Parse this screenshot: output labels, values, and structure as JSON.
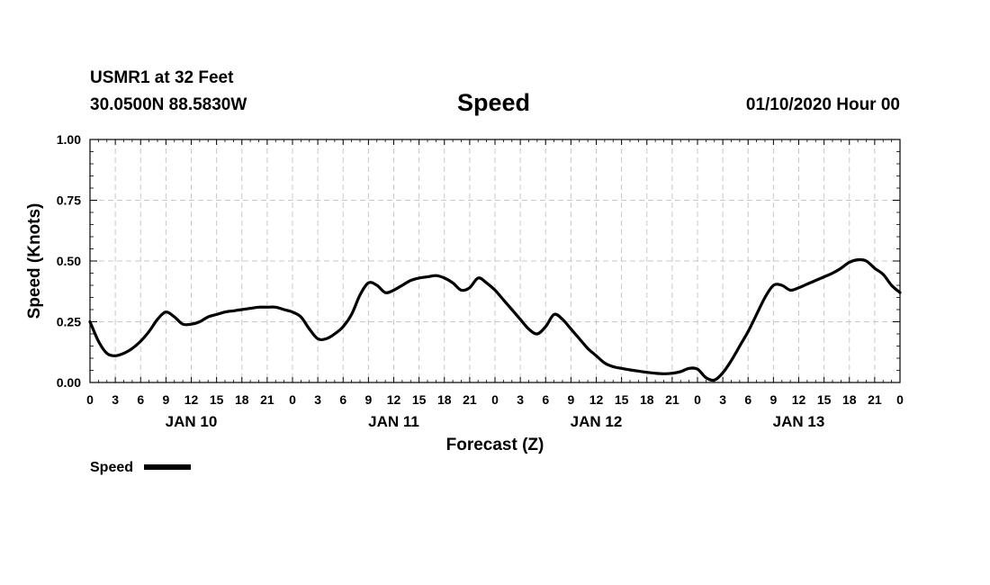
{
  "header": {
    "station": "USMR1 at 32 Feet",
    "location": "30.0500N 88.5830W",
    "title": "Speed",
    "datetime": "01/10/2020 Hour 00"
  },
  "chart_data": {
    "type": "line",
    "title": "Speed",
    "xlabel": "Forecast (Z)",
    "ylabel": "Speed (Knots)",
    "xlim": [
      0,
      96
    ],
    "ylim": [
      0,
      1
    ],
    "yticks": [
      "0.00",
      "0.25",
      "0.50",
      "0.75",
      "1.00"
    ],
    "xtick_labels": [
      "0",
      "3",
      "6",
      "9",
      "12",
      "15",
      "18",
      "21",
      "0",
      "3",
      "6",
      "9",
      "12",
      "15",
      "18",
      "21",
      "0",
      "3",
      "6",
      "9",
      "12",
      "15",
      "18",
      "21",
      "0",
      "3",
      "6",
      "9",
      "12",
      "15",
      "18",
      "21",
      "0"
    ],
    "day_labels": [
      "JAN 10",
      "JAN 11",
      "JAN 12",
      "JAN 13"
    ],
    "grid": true,
    "legend": "bottom-left",
    "series": [
      {
        "name": "Speed",
        "color": "#000000",
        "x": [
          0,
          1,
          2,
          3,
          4,
          5,
          6,
          7,
          8,
          9,
          10,
          11,
          12,
          13,
          14,
          15,
          16,
          17,
          18,
          19,
          20,
          21,
          22,
          23,
          24,
          25,
          26,
          27,
          28,
          29,
          30,
          31,
          32,
          33,
          34,
          35,
          36,
          37,
          38,
          39,
          40,
          41,
          42,
          43,
          44,
          45,
          46,
          47,
          48,
          49,
          50,
          51,
          52,
          53,
          54,
          55,
          56,
          57,
          58,
          59,
          60,
          61,
          62,
          63,
          64,
          65,
          66,
          67,
          68,
          69,
          70,
          71,
          72,
          73,
          74,
          75,
          76,
          77,
          78,
          79,
          80,
          81,
          82,
          83,
          84,
          85,
          86,
          87,
          88,
          89,
          90,
          91,
          92,
          93,
          94,
          95,
          96
        ],
        "y": [
          0.25,
          0.17,
          0.12,
          0.11,
          0.12,
          0.14,
          0.17,
          0.21,
          0.26,
          0.29,
          0.27,
          0.24,
          0.24,
          0.25,
          0.27,
          0.28,
          0.29,
          0.295,
          0.3,
          0.305,
          0.31,
          0.31,
          0.31,
          0.3,
          0.29,
          0.27,
          0.22,
          0.18,
          0.18,
          0.2,
          0.23,
          0.28,
          0.36,
          0.41,
          0.4,
          0.37,
          0.38,
          0.4,
          0.42,
          0.43,
          0.435,
          0.44,
          0.43,
          0.41,
          0.38,
          0.39,
          0.43,
          0.41,
          0.38,
          0.34,
          0.3,
          0.26,
          0.22,
          0.2,
          0.23,
          0.28,
          0.26,
          0.22,
          0.18,
          0.14,
          0.11,
          0.08,
          0.065,
          0.058,
          0.052,
          0.047,
          0.042,
          0.038,
          0.036,
          0.038,
          0.045,
          0.058,
          0.055,
          0.02,
          0.01,
          0.04,
          0.09,
          0.15,
          0.21,
          0.28,
          0.35,
          0.4,
          0.4,
          0.38,
          0.39,
          0.405,
          0.42,
          0.435,
          0.45,
          0.47,
          0.495,
          0.505,
          0.5,
          0.47,
          0.445,
          0.4,
          0.37
        ]
      }
    ]
  },
  "legend": {
    "label": "Speed"
  }
}
